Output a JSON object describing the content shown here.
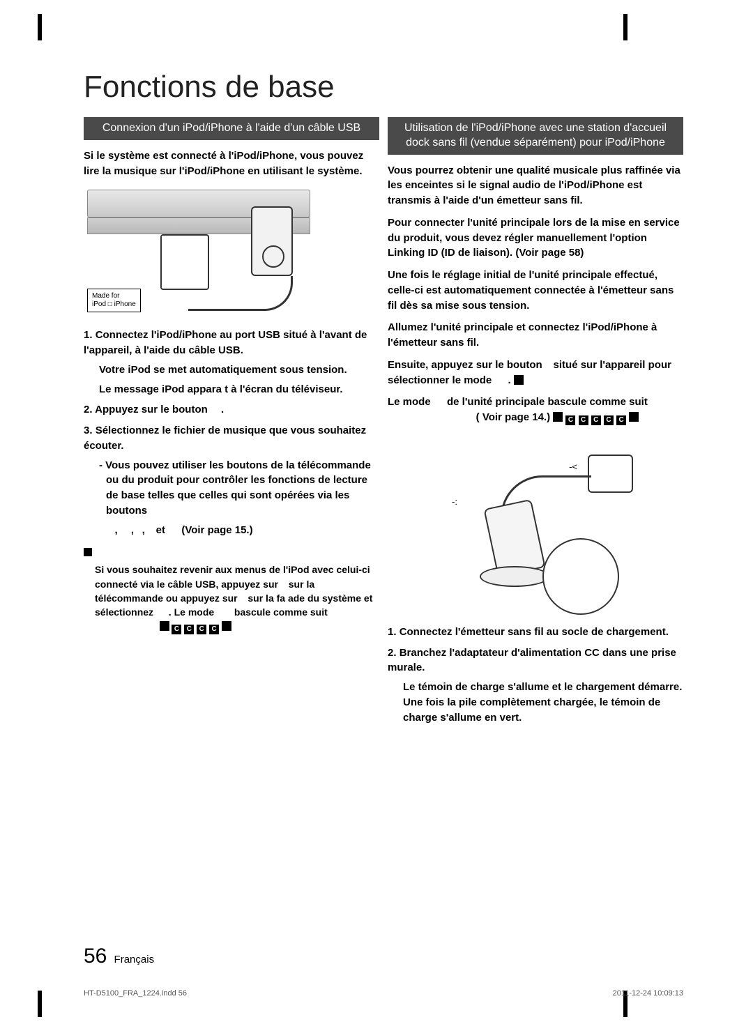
{
  "title": "Fonctions de base",
  "left": {
    "header": "Connexion d'un iPod/iPhone à l'aide d'un câble USB",
    "intro": "Si le système est connecté à l'iPod/iPhone, vous pouvez lire la musique sur l'iPod/iPhone en utilisant le système.",
    "badge_line1": "Made for",
    "badge_line2": "iPod □ iPhone",
    "step1": "Connectez l'iPod/iPhone au port USB situé à l'avant de l'appareil, à l'aide du câble USB.",
    "step1_sub1": "Votre iPod se met automatiquement sous tension.",
    "step1_sub2": "Le message   iPod   appara t à l'écran du téléviseur.",
    "step2": "Appuyez sur le bouton   .",
    "step3": "Sélectionnez le fichier de musique que vous souhaitez écouter.",
    "step3_sub": "- Vous pouvez utiliser les boutons de la télécommande ou du produit pour contrôler les fonctions de lecture de base telles que celles qui sont opérées via les boutons",
    "step3_buttons": "   ,   ,  ,                               et    (Voir page 15.)",
    "note_label": "   ",
    "note_body": "Si vous souhaitez revenir aux menus de l'iPod avec celui-ci connecté via le câble USB, appuyez sur   sur la télécommande ou appuyez sur   sur la fa ade du système et sélectionnez    . Le mode     bascule comme suit                                   "
  },
  "right": {
    "header": "Utilisation de l'iPod/iPhone avec une station d'accueil dock sans fil (vendue séparément) pour iPod/iPhone",
    "p1": "Vous pourrez obtenir une qualité musicale plus raffinée via les enceintes si le signal audio de l'iPod/iPhone est transmis à l'aide d'un émetteur sans fil.",
    "p2": "Pour connecter l'unité principale lors de la mise en service du produit, vous devez régler manuellement l'option Linking ID (ID de liaison). (Voir page 58)",
    "p3": "Une fois le réglage initial de l'unité principale effectué, celle-ci est automatiquement connectée à l'émetteur sans fil dès sa mise sous tension.",
    "p4a": "Allumez l'unité principale et connectez l'iPod/iPhone à l'émetteur sans fil.",
    "p4b": "Ensuite, appuyez sur le bouton   situé sur l'appareil pour sélectionner le mode     .",
    "p4c": "Le mode    de l'unité principale bascule comme suit                               ( Voir page 14.)",
    "diagram_label": "     ",
    "arrow_a": "-:",
    "arrow_b": "-<",
    "step1": "Connectez l'émetteur sans fil au socle de chargement.",
    "step2": "Branchez l'adaptateur d'alimentation CC dans une prise murale.",
    "step2_sub": "Le témoin de charge s'allume et le chargement démarre. Une fois la pile complètement chargée, le témoin de charge s'allume en vert."
  },
  "footer": {
    "page_num": "56",
    "lang": "Français",
    "indd": "HT-D5100_FRA_1224.indd   56",
    "timestamp": "2011-12-24   10:09:13"
  },
  "colors": {
    "header_bg": "#4a4a4a",
    "header_fg": "#ffffff",
    "text": "#000000",
    "page_bg": "#ffffff"
  }
}
